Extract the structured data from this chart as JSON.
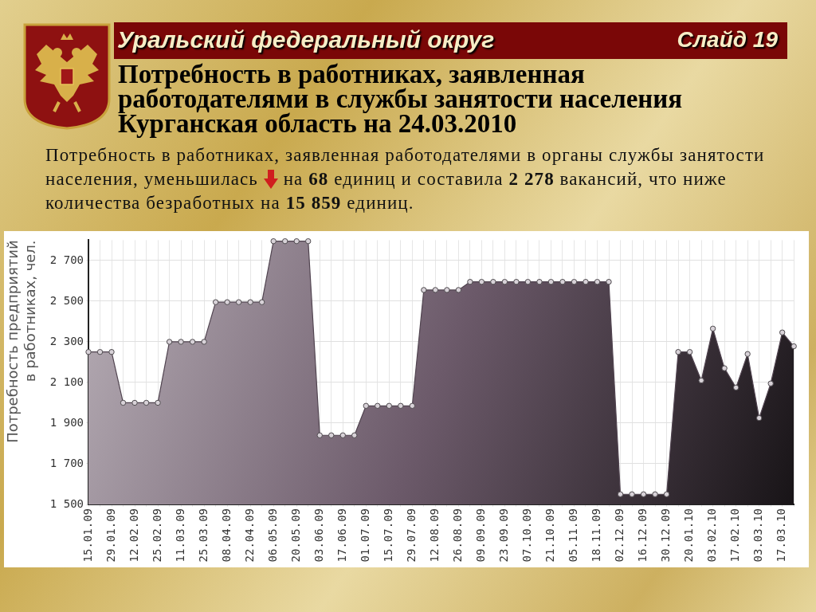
{
  "chart_data": {
    "type": "area",
    "title": "Потребность в работниках, заявленная работодателями в службы занятости населения Курганская область на 24.03.2010",
    "subtitle": "Потребность в работниках, заявленная работодателями в органы службы занятости населения, уменьшилась на 68 единиц и составила 2 278 вакансий, что ниже количества безработных на 15 859 единиц.",
    "annotations": [
      "Уральский федеральный округ",
      "Слайд 19"
    ],
    "ylabel": "Потребность предприятий в работниках, чел.",
    "categories": [
      "15.01.09",
      null,
      "29.01.09",
      null,
      "12.02.09",
      null,
      "25.02.09",
      null,
      "11.03.09",
      null,
      "25.03.09",
      null,
      "08.04.09",
      null,
      "22.04.09",
      null,
      "06.05.09",
      null,
      "20.05.09",
      null,
      "03.06.09",
      null,
      "17.06.09",
      null,
      "01.07.09",
      null,
      "15.07.09",
      null,
      "29.07.09",
      null,
      "12.08.09",
      null,
      "26.08.09",
      null,
      "09.09.09",
      null,
      "23.09.09",
      null,
      "07.10.09",
      null,
      "21.10.09",
      null,
      "05.11.09",
      null,
      "18.11.09",
      null,
      "02.12.09",
      null,
      "16.12.09",
      null,
      "30.12.09",
      null,
      "20.01.10",
      null,
      "03.02.10",
      null,
      "17.02.10",
      null,
      "03.03.10",
      null,
      "17.03.10",
      null
    ],
    "series": [
      {
        "color": "#6c5a6a",
        "values": [
          2250,
          2250,
          2250,
          2000,
          2000,
          2000,
          2000,
          2300,
          2300,
          2300,
          2300,
          2495,
          2495,
          2495,
          2495,
          2495,
          2795,
          2795,
          2795,
          2795,
          1840,
          1840,
          1840,
          1840,
          1985,
          1985,
          1985,
          1985,
          1985,
          2555,
          2555,
          2555,
          2555,
          2595,
          2595,
          2595,
          2595,
          2595,
          2595,
          2595,
          2595,
          2595,
          2595,
          2595,
          2595,
          2595,
          1550,
          1550,
          1550,
          1550,
          1550,
          2250,
          2250,
          2110,
          2365,
          2170,
          2075,
          2240,
          1925,
          2095,
          2346,
          2278
        ]
      }
    ],
    "ylim": [
      1500,
      2800
    ],
    "yticks": [
      {
        "value": 1500,
        "label": "1 500"
      },
      {
        "value": 1700,
        "label": "1 700"
      },
      {
        "value": 1900,
        "label": "1 900"
      },
      {
        "value": 2100,
        "label": "2 100"
      },
      {
        "value": 2300,
        "label": "2 300"
      },
      {
        "value": 2500,
        "label": "2 500"
      },
      {
        "value": 2700,
        "label": "2 700"
      }
    ],
    "grid": true,
    "legend": false,
    "marker": "circle",
    "line_style": "solid"
  }
}
